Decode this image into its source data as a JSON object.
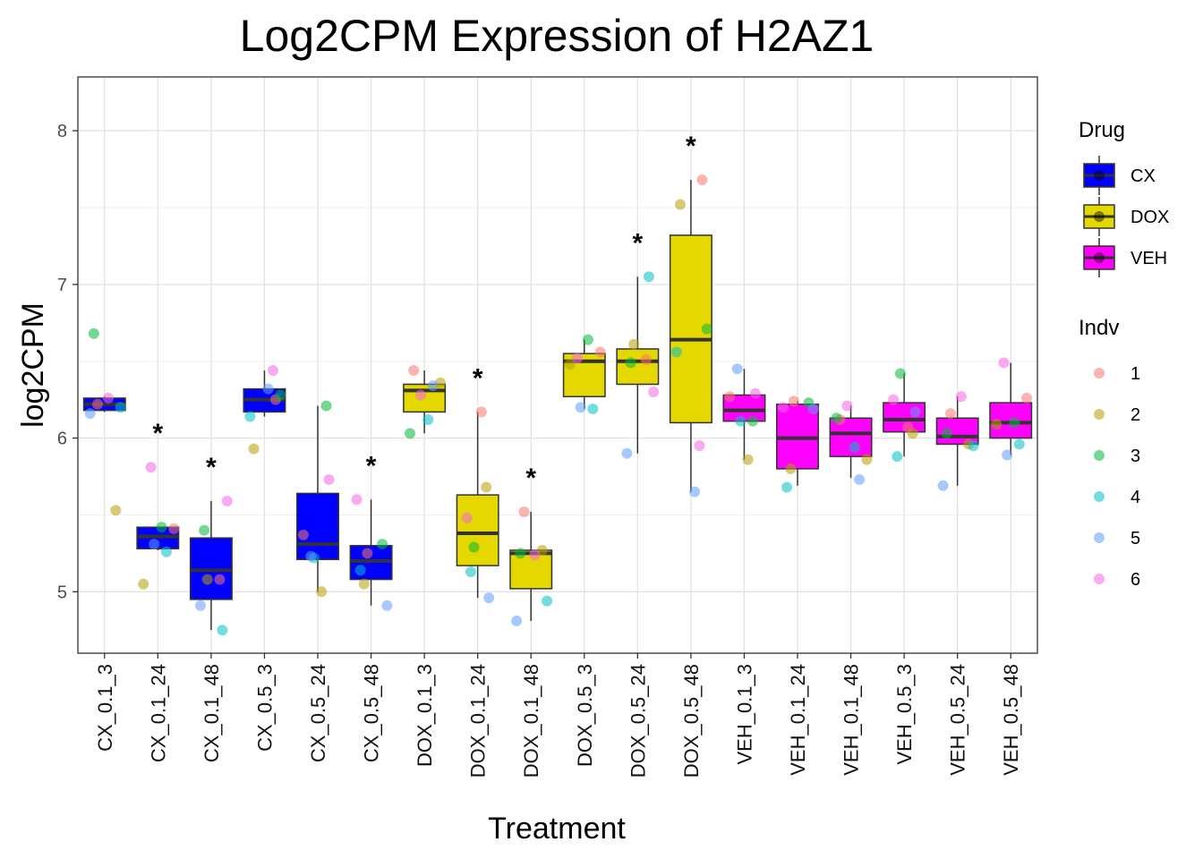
{
  "chart_data": {
    "type": "box",
    "title": "Log2CPM Expression of H2AZ1",
    "xlabel": "Treatment",
    "ylabel": "log2CPM",
    "ylim": [
      4.6,
      8.35
    ],
    "yticks": [
      5,
      6,
      7,
      8
    ],
    "ytick_labels": [
      "5",
      "6",
      "7",
      "8"
    ],
    "grid": true,
    "legend_position": "right",
    "drug_colors": {
      "CX": "#0000ff",
      "DOX": "#e5d800",
      "VEH": "#ff00ff"
    },
    "indv_colors": {
      "1": "#f8766d",
      "2": "#b79f00",
      "3": "#00ba38",
      "4": "#00bfc4",
      "5": "#619cff",
      "6": "#f564e3"
    },
    "legends": [
      {
        "title": "Drug",
        "kind": "box",
        "entries": [
          {
            "label": "CX",
            "color": "#0000ff"
          },
          {
            "label": "DOX",
            "color": "#e5d800"
          },
          {
            "label": "VEH",
            "color": "#ff00ff"
          }
        ]
      },
      {
        "title": "Indv",
        "kind": "point",
        "entries": [
          {
            "label": "1",
            "color": "#f8766d"
          },
          {
            "label": "2",
            "color": "#b79f00"
          },
          {
            "label": "3",
            "color": "#00ba38"
          },
          {
            "label": "4",
            "color": "#00bfc4"
          },
          {
            "label": "5",
            "color": "#619cff"
          },
          {
            "label": "6",
            "color": "#f564e3"
          }
        ]
      }
    ],
    "groups": [
      {
        "category": "CX_0.1_3",
        "drug": "CX",
        "star": false,
        "box": {
          "lower_whisker": 6.17,
          "q1": 6.18,
          "median": 6.22,
          "q3": 6.26,
          "upper_whisker": 6.27
        },
        "points": [
          {
            "indv": "1",
            "y": 6.22
          },
          {
            "indv": "2",
            "y": 5.53
          },
          {
            "indv": "3",
            "y": 6.68
          },
          {
            "indv": "4",
            "y": 6.2
          },
          {
            "indv": "5",
            "y": 6.16
          },
          {
            "indv": "6",
            "y": 6.26
          }
        ]
      },
      {
        "category": "CX_0.1_24",
        "drug": "CX",
        "star": true,
        "box": {
          "lower_whisker": 5.27,
          "q1": 5.28,
          "median": 5.36,
          "q3": 5.42,
          "upper_whisker": 5.42
        },
        "points": [
          {
            "indv": "1",
            "y": 5.41
          },
          {
            "indv": "2",
            "y": 5.05
          },
          {
            "indv": "3",
            "y": 5.42
          },
          {
            "indv": "4",
            "y": 5.26
          },
          {
            "indv": "5",
            "y": 5.31
          },
          {
            "indv": "6",
            "y": 5.81
          }
        ]
      },
      {
        "category": "CX_0.1_48",
        "drug": "CX",
        "star": true,
        "box": {
          "lower_whisker": 4.75,
          "q1": 4.95,
          "median": 5.14,
          "q3": 5.35,
          "upper_whisker": 5.59
        },
        "points": [
          {
            "indv": "1",
            "y": 5.08
          },
          {
            "indv": "2",
            "y": 5.08
          },
          {
            "indv": "3",
            "y": 5.4
          },
          {
            "indv": "4",
            "y": 4.75
          },
          {
            "indv": "5",
            "y": 4.91
          },
          {
            "indv": "6",
            "y": 5.59
          }
        ]
      },
      {
        "category": "CX_0.5_3",
        "drug": "CX",
        "star": false,
        "box": {
          "lower_whisker": 6.14,
          "q1": 6.17,
          "median": 6.25,
          "q3": 6.32,
          "upper_whisker": 6.44
        },
        "points": [
          {
            "indv": "1",
            "y": 6.25
          },
          {
            "indv": "2",
            "y": 5.93
          },
          {
            "indv": "3",
            "y": 6.28
          },
          {
            "indv": "4",
            "y": 6.14
          },
          {
            "indv": "5",
            "y": 6.32
          },
          {
            "indv": "6",
            "y": 6.44
          }
        ]
      },
      {
        "category": "CX_0.5_24",
        "drug": "CX",
        "star": false,
        "box": {
          "lower_whisker": 5.0,
          "q1": 5.21,
          "median": 5.31,
          "q3": 5.64,
          "upper_whisker": 6.21
        },
        "points": [
          {
            "indv": "1",
            "y": 5.37
          },
          {
            "indv": "2",
            "y": 5.0
          },
          {
            "indv": "3",
            "y": 6.21
          },
          {
            "indv": "4",
            "y": 5.22
          },
          {
            "indv": "5",
            "y": 5.23
          },
          {
            "indv": "6",
            "y": 5.73
          }
        ]
      },
      {
        "category": "CX_0.5_48",
        "drug": "CX",
        "star": true,
        "box": {
          "lower_whisker": 4.91,
          "q1": 5.08,
          "median": 5.2,
          "q3": 5.3,
          "upper_whisker": 5.6
        },
        "points": [
          {
            "indv": "1",
            "y": 5.25
          },
          {
            "indv": "2",
            "y": 5.05
          },
          {
            "indv": "3",
            "y": 5.31
          },
          {
            "indv": "4",
            "y": 5.14
          },
          {
            "indv": "5",
            "y": 4.91
          },
          {
            "indv": "6",
            "y": 5.6
          }
        ]
      },
      {
        "category": "DOX_0.1_3",
        "drug": "DOX",
        "star": false,
        "box": {
          "lower_whisker": 6.03,
          "q1": 6.17,
          "median": 6.31,
          "q3": 6.35,
          "upper_whisker": 6.44
        },
        "points": [
          {
            "indv": "1",
            "y": 6.44
          },
          {
            "indv": "2",
            "y": 6.36
          },
          {
            "indv": "3",
            "y": 6.03
          },
          {
            "indv": "4",
            "y": 6.12
          },
          {
            "indv": "5",
            "y": 6.34
          },
          {
            "indv": "6",
            "y": 6.28
          }
        ]
      },
      {
        "category": "DOX_0.1_24",
        "drug": "DOX",
        "star": true,
        "box": {
          "lower_whisker": 4.96,
          "q1": 5.17,
          "median": 5.38,
          "q3": 5.63,
          "upper_whisker": 6.17
        },
        "points": [
          {
            "indv": "1",
            "y": 6.17
          },
          {
            "indv": "2",
            "y": 5.68
          },
          {
            "indv": "3",
            "y": 5.29
          },
          {
            "indv": "4",
            "y": 5.13
          },
          {
            "indv": "5",
            "y": 4.96
          },
          {
            "indv": "6",
            "y": 5.48
          }
        ]
      },
      {
        "category": "DOX_0.1_48",
        "drug": "DOX",
        "star": true,
        "box": {
          "lower_whisker": 4.81,
          "q1": 5.02,
          "median": 5.25,
          "q3": 5.27,
          "upper_whisker": 5.52
        },
        "points": [
          {
            "indv": "1",
            "y": 5.52
          },
          {
            "indv": "2",
            "y": 5.27
          },
          {
            "indv": "3",
            "y": 5.25
          },
          {
            "indv": "4",
            "y": 4.94
          },
          {
            "indv": "5",
            "y": 4.81
          },
          {
            "indv": "6",
            "y": 5.24
          }
        ]
      },
      {
        "category": "DOX_0.5_3",
        "drug": "DOX",
        "star": false,
        "box": {
          "lower_whisker": 6.19,
          "q1": 6.27,
          "median": 6.5,
          "q3": 6.55,
          "upper_whisker": 6.64
        },
        "points": [
          {
            "indv": "1",
            "y": 6.56
          },
          {
            "indv": "2",
            "y": 6.48
          },
          {
            "indv": "3",
            "y": 6.64
          },
          {
            "indv": "4",
            "y": 6.19
          },
          {
            "indv": "5",
            "y": 6.2
          },
          {
            "indv": "6",
            "y": 6.52
          }
        ]
      },
      {
        "category": "DOX_0.5_24",
        "drug": "DOX",
        "star": true,
        "box": {
          "lower_whisker": 5.9,
          "q1": 6.35,
          "median": 6.5,
          "q3": 6.58,
          "upper_whisker": 7.05
        },
        "points": [
          {
            "indv": "1",
            "y": 6.51
          },
          {
            "indv": "2",
            "y": 6.61
          },
          {
            "indv": "3",
            "y": 6.49
          },
          {
            "indv": "4",
            "y": 7.05
          },
          {
            "indv": "5",
            "y": 5.9
          },
          {
            "indv": "6",
            "y": 6.3
          }
        ]
      },
      {
        "category": "DOX_0.5_48",
        "drug": "DOX",
        "star": true,
        "box": {
          "lower_whisker": 5.65,
          "q1": 6.1,
          "median": 6.64,
          "q3": 7.32,
          "upper_whisker": 7.68
        },
        "points": [
          {
            "indv": "1",
            "y": 7.68
          },
          {
            "indv": "2",
            "y": 7.52
          },
          {
            "indv": "3",
            "y": 6.71
          },
          {
            "indv": "4",
            "y": 6.56
          },
          {
            "indv": "5",
            "y": 5.65
          },
          {
            "indv": "6",
            "y": 5.95
          }
        ]
      },
      {
        "category": "VEH_0.1_3",
        "drug": "VEH",
        "star": false,
        "box": {
          "lower_whisker": 5.86,
          "q1": 6.11,
          "median": 6.18,
          "q3": 6.28,
          "upper_whisker": 6.45
        },
        "points": [
          {
            "indv": "1",
            "y": 6.27
          },
          {
            "indv": "2",
            "y": 5.86
          },
          {
            "indv": "3",
            "y": 6.11
          },
          {
            "indv": "4",
            "y": 6.11
          },
          {
            "indv": "5",
            "y": 6.45
          },
          {
            "indv": "6",
            "y": 6.29
          }
        ]
      },
      {
        "category": "VEH_0.1_24",
        "drug": "VEH",
        "star": false,
        "box": {
          "lower_whisker": 5.69,
          "q1": 5.8,
          "median": 6.0,
          "q3": 6.22,
          "upper_whisker": 6.24
        },
        "points": [
          {
            "indv": "1",
            "y": 6.24
          },
          {
            "indv": "2",
            "y": 5.8
          },
          {
            "indv": "3",
            "y": 6.23
          },
          {
            "indv": "4",
            "y": 5.68
          },
          {
            "indv": "5",
            "y": 6.19
          },
          {
            "indv": "6",
            "y": 6.2
          }
        ]
      },
      {
        "category": "VEH_0.1_48",
        "drug": "VEH",
        "star": false,
        "box": {
          "lower_whisker": 5.74,
          "q1": 5.88,
          "median": 6.03,
          "q3": 6.13,
          "upper_whisker": 6.21
        },
        "points": [
          {
            "indv": "1",
            "y": 6.12
          },
          {
            "indv": "2",
            "y": 5.86
          },
          {
            "indv": "3",
            "y": 6.13
          },
          {
            "indv": "4",
            "y": 5.94
          },
          {
            "indv": "5",
            "y": 5.73
          },
          {
            "indv": "6",
            "y": 6.21
          }
        ]
      },
      {
        "category": "VEH_0.5_3",
        "drug": "VEH",
        "star": false,
        "box": {
          "lower_whisker": 5.88,
          "q1": 6.04,
          "median": 6.12,
          "q3": 6.23,
          "upper_whisker": 6.42
        },
        "points": [
          {
            "indv": "1",
            "y": 6.07
          },
          {
            "indv": "2",
            "y": 6.03
          },
          {
            "indv": "3",
            "y": 6.42
          },
          {
            "indv": "4",
            "y": 5.88
          },
          {
            "indv": "5",
            "y": 6.17
          },
          {
            "indv": "6",
            "y": 6.25
          }
        ]
      },
      {
        "category": "VEH_0.5_24",
        "drug": "VEH",
        "star": false,
        "box": {
          "lower_whisker": 5.69,
          "q1": 5.96,
          "median": 6.01,
          "q3": 6.13,
          "upper_whisker": 6.27
        },
        "points": [
          {
            "indv": "1",
            "y": 6.16
          },
          {
            "indv": "2",
            "y": 5.96
          },
          {
            "indv": "3",
            "y": 6.03
          },
          {
            "indv": "4",
            "y": 5.95
          },
          {
            "indv": "5",
            "y": 5.69
          },
          {
            "indv": "6",
            "y": 6.27
          }
        ]
      },
      {
        "category": "VEH_0.5_48",
        "drug": "VEH",
        "star": false,
        "box": {
          "lower_whisker": 5.89,
          "q1": 6.0,
          "median": 6.1,
          "q3": 6.23,
          "upper_whisker": 6.49
        },
        "points": [
          {
            "indv": "1",
            "y": 6.26
          },
          {
            "indv": "2",
            "y": 6.09
          },
          {
            "indv": "3",
            "y": 6.1
          },
          {
            "indv": "4",
            "y": 5.96
          },
          {
            "indv": "5",
            "y": 5.89
          },
          {
            "indv": "6",
            "y": 6.49
          }
        ]
      }
    ],
    "star_label": "*"
  }
}
